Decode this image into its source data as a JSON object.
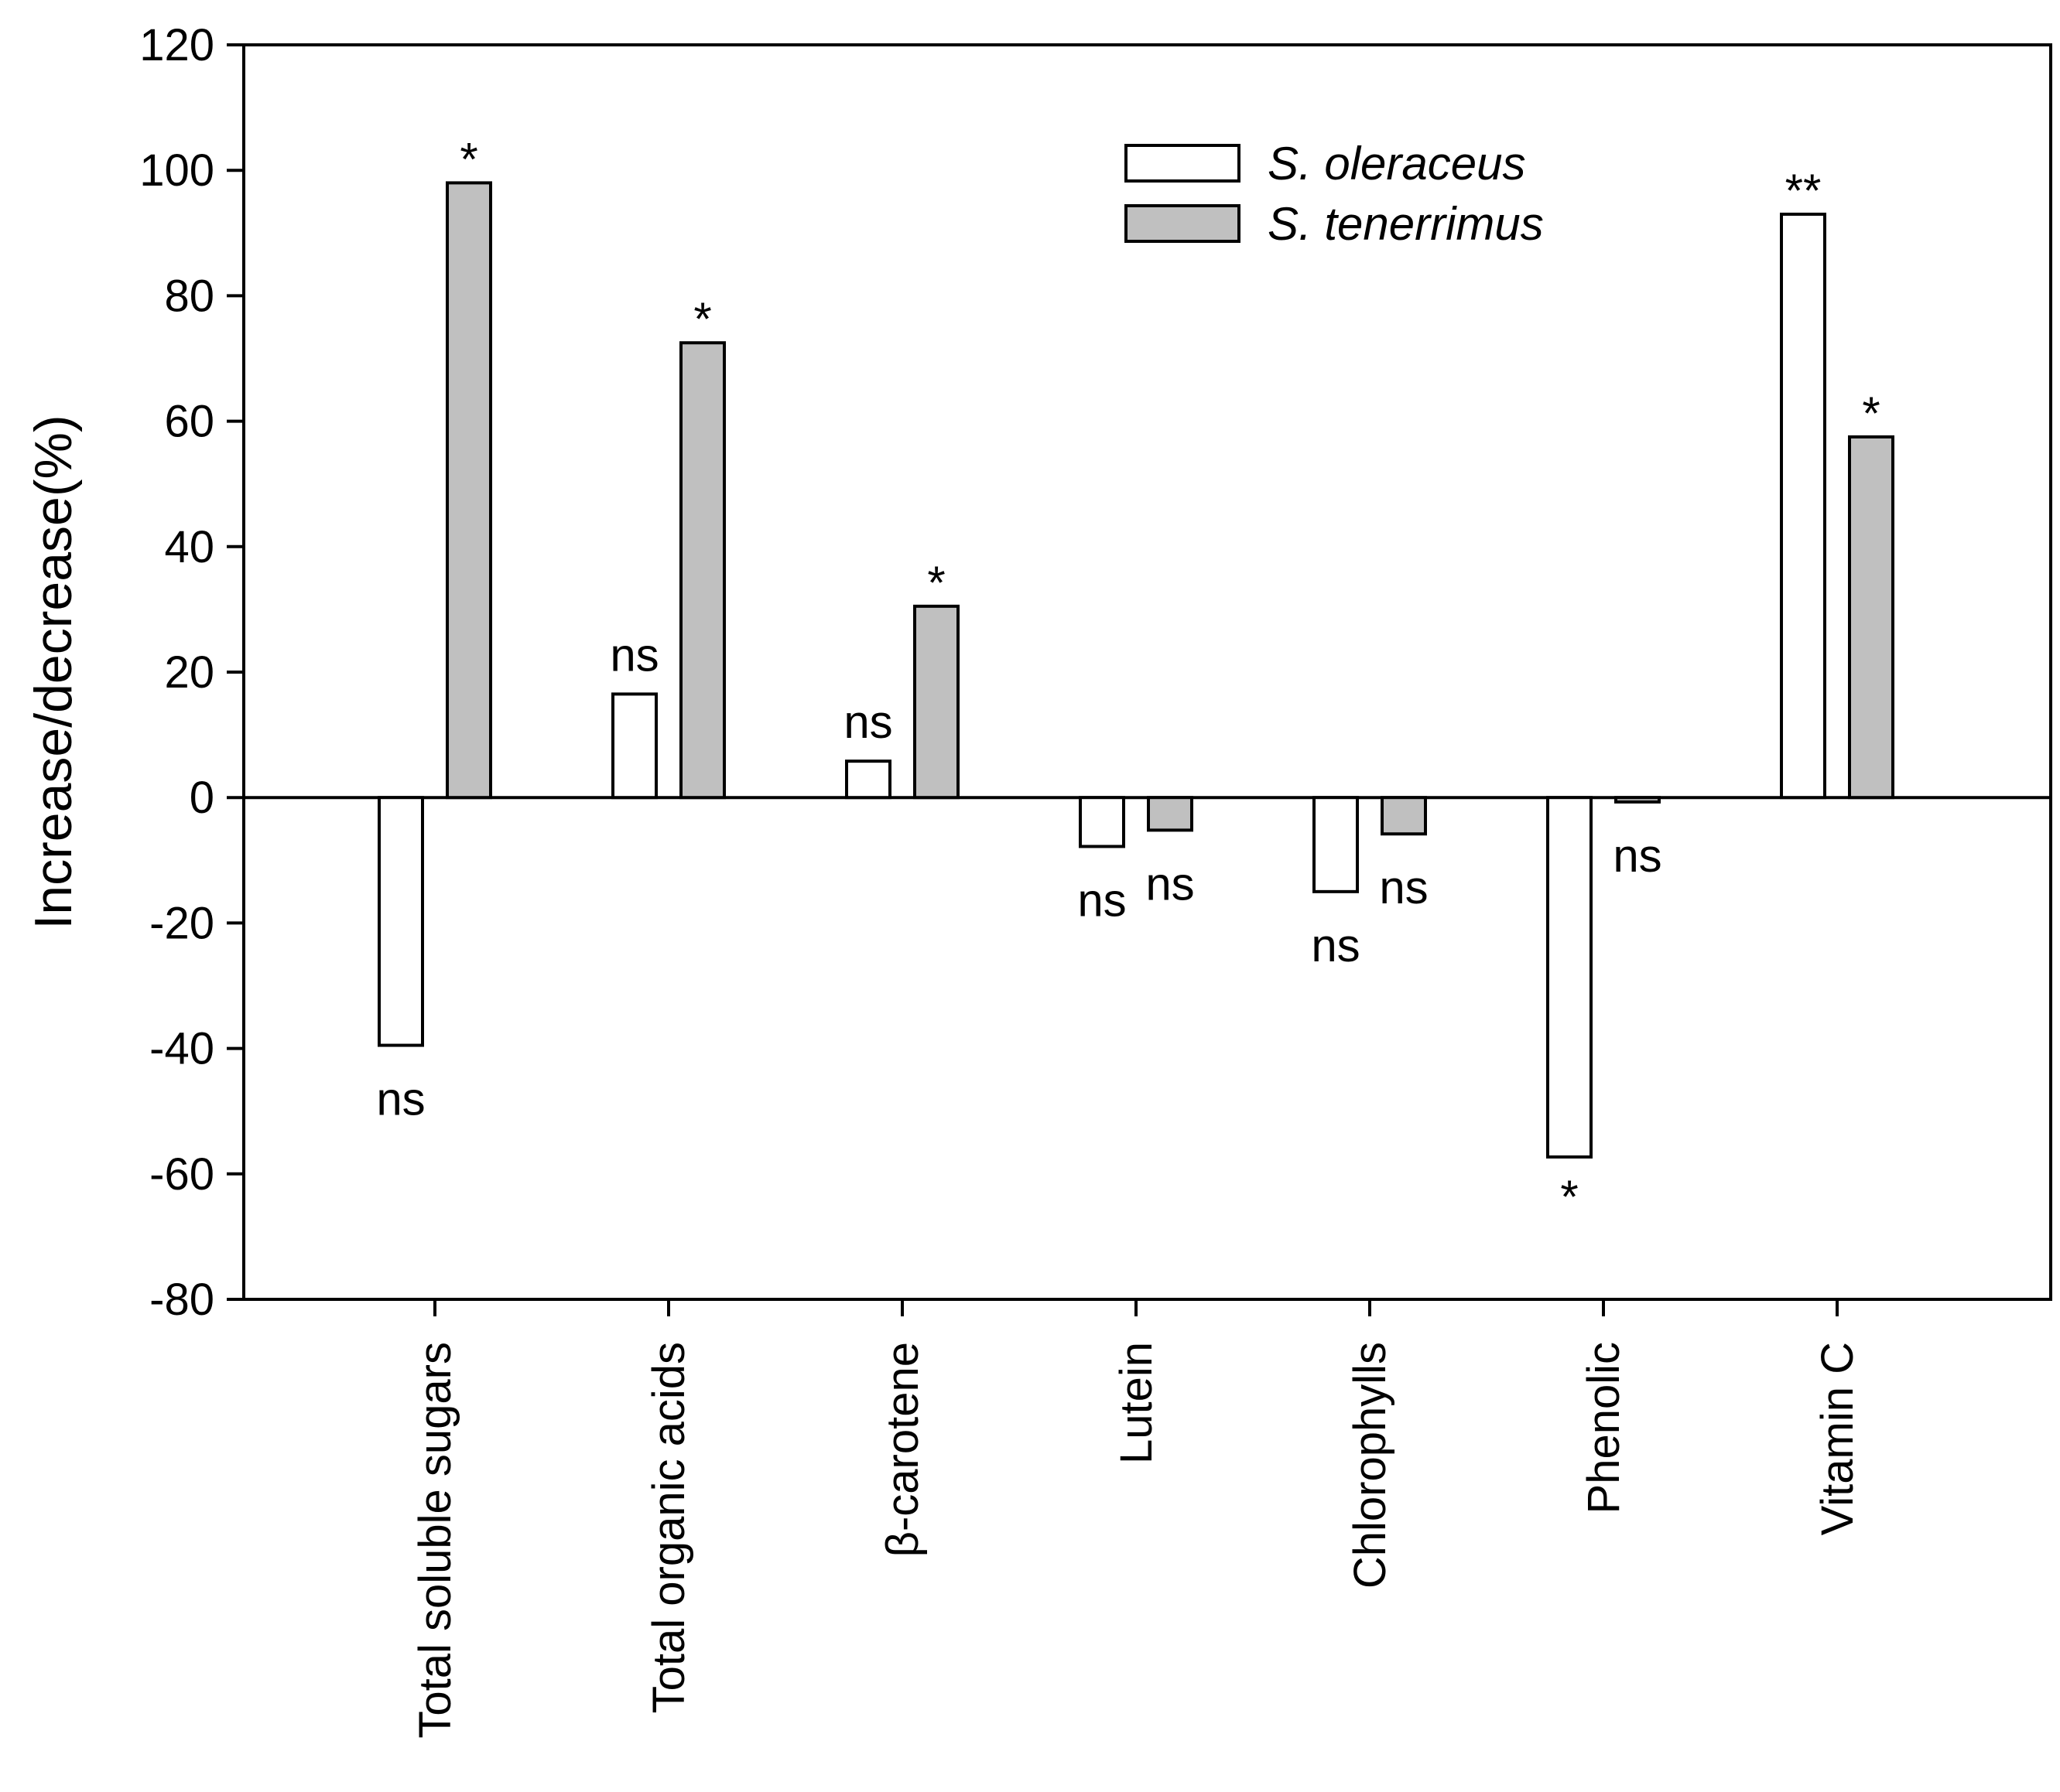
{
  "chart_data": {
    "type": "bar",
    "title": "",
    "xlabel": "",
    "ylabel": "Increase/decrease(%)",
    "ylim": [
      -80,
      120
    ],
    "yticks": [
      120,
      100,
      80,
      60,
      40,
      20,
      0,
      -20,
      -40,
      -60,
      -80
    ],
    "categories": [
      "Total soluble sugars",
      "Total organic acids",
      "β-carotene",
      "Lutein",
      "Chlorophylls",
      "Phenolic",
      "Vitamin C"
    ],
    "series": [
      {
        "name": "S. oleraceus",
        "color": "#ffffff",
        "values": [
          -39.5,
          16.5,
          5.8,
          -7.8,
          -15.0,
          -57.3,
          93.0
        ],
        "annotations": [
          "ns",
          "ns",
          "ns",
          "ns",
          "ns",
          "*",
          "**"
        ]
      },
      {
        "name": "S. tenerrimus",
        "color": "#c0c0c0",
        "values": [
          98.0,
          72.5,
          30.5,
          -5.2,
          -5.8,
          -0.7,
          57.5
        ],
        "annotations": [
          "*",
          "*",
          "*",
          "ns",
          "ns",
          "ns",
          "*"
        ]
      }
    ],
    "grid": false,
    "legend_position": "top-center"
  }
}
